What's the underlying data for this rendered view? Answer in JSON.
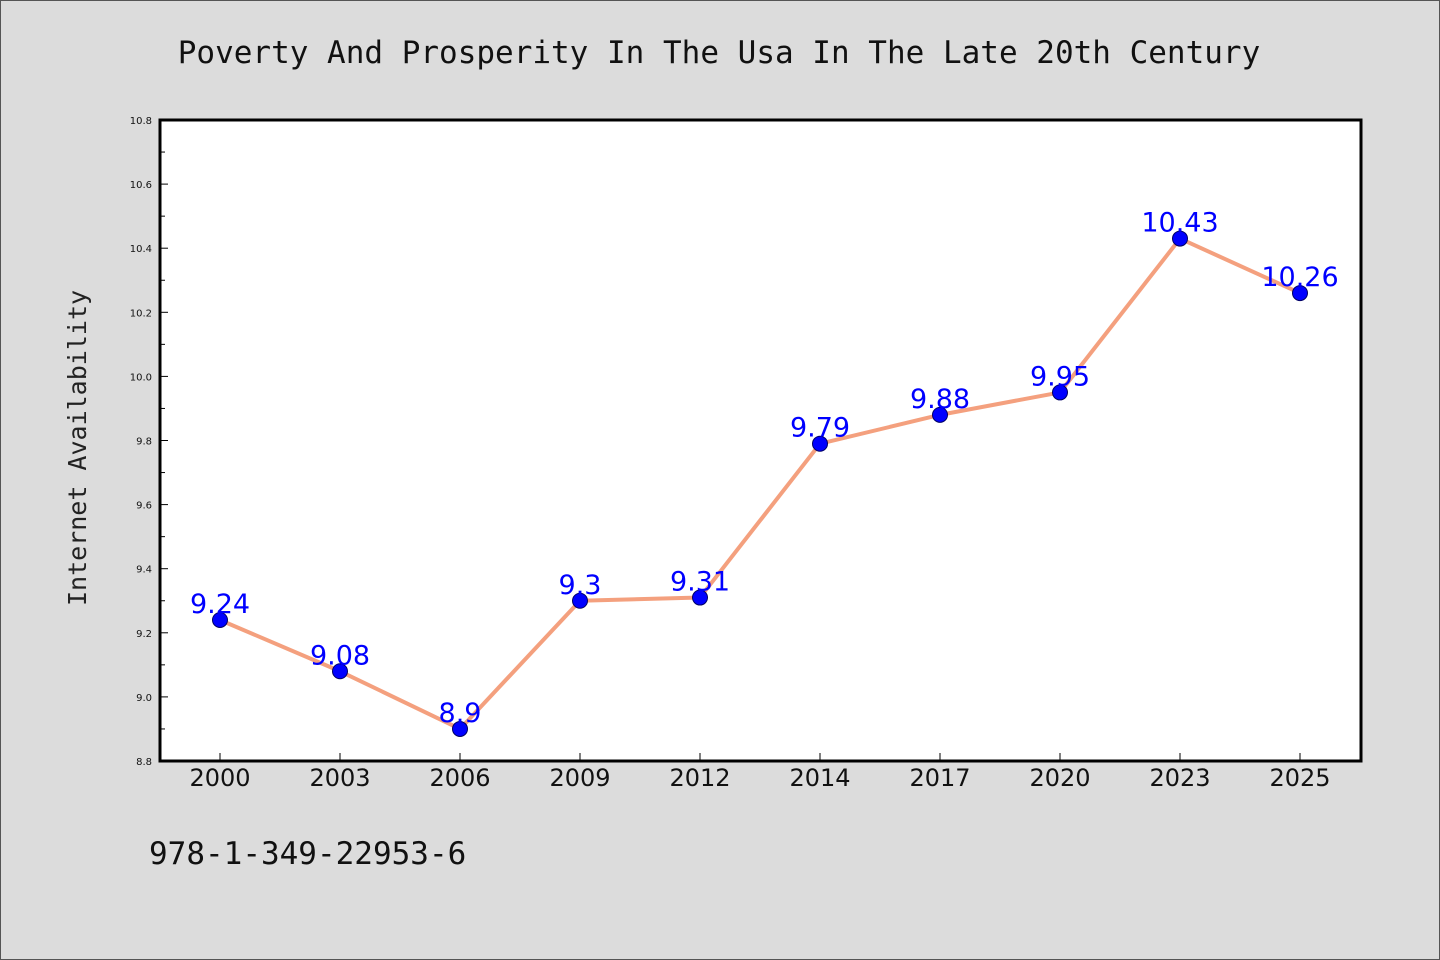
{
  "chart_data": {
    "type": "line",
    "title": "Poverty And Prosperity In The Usa In The Late 20th Century",
    "xlabel": "",
    "ylabel": "Internet Availability",
    "categories": [
      "2000",
      "2003",
      "2006",
      "2009",
      "2012",
      "2014",
      "2017",
      "2020",
      "2023",
      "2025"
    ],
    "series": [
      {
        "values": [
          9.24,
          9.08,
          8.9,
          9.3,
          9.31,
          9.79,
          9.88,
          9.95,
          10.43,
          10.26
        ]
      }
    ],
    "data_labels": [
      "9.24",
      "9.08",
      "8.9",
      "9.3",
      "9.31",
      "9.79",
      "9.88",
      "9.95",
      "10.43",
      "10.26"
    ],
    "ylim": [
      8.8,
      10.8
    ],
    "yticks": [
      "8.8",
      "9.0",
      "9.2",
      "9.4",
      "9.6",
      "9.8",
      "10.0",
      "10.2",
      "10.4",
      "10.6",
      "10.8"
    ],
    "grid": false,
    "legend": "none",
    "colors": {
      "line": "#f4a07e",
      "marker": "#0000ff",
      "marker_edge": "#000066",
      "label": "#0000ff",
      "background": "#dcdcdc",
      "plot_area": "#ffffff"
    }
  },
  "footnote": "978-1-349-22953-6"
}
